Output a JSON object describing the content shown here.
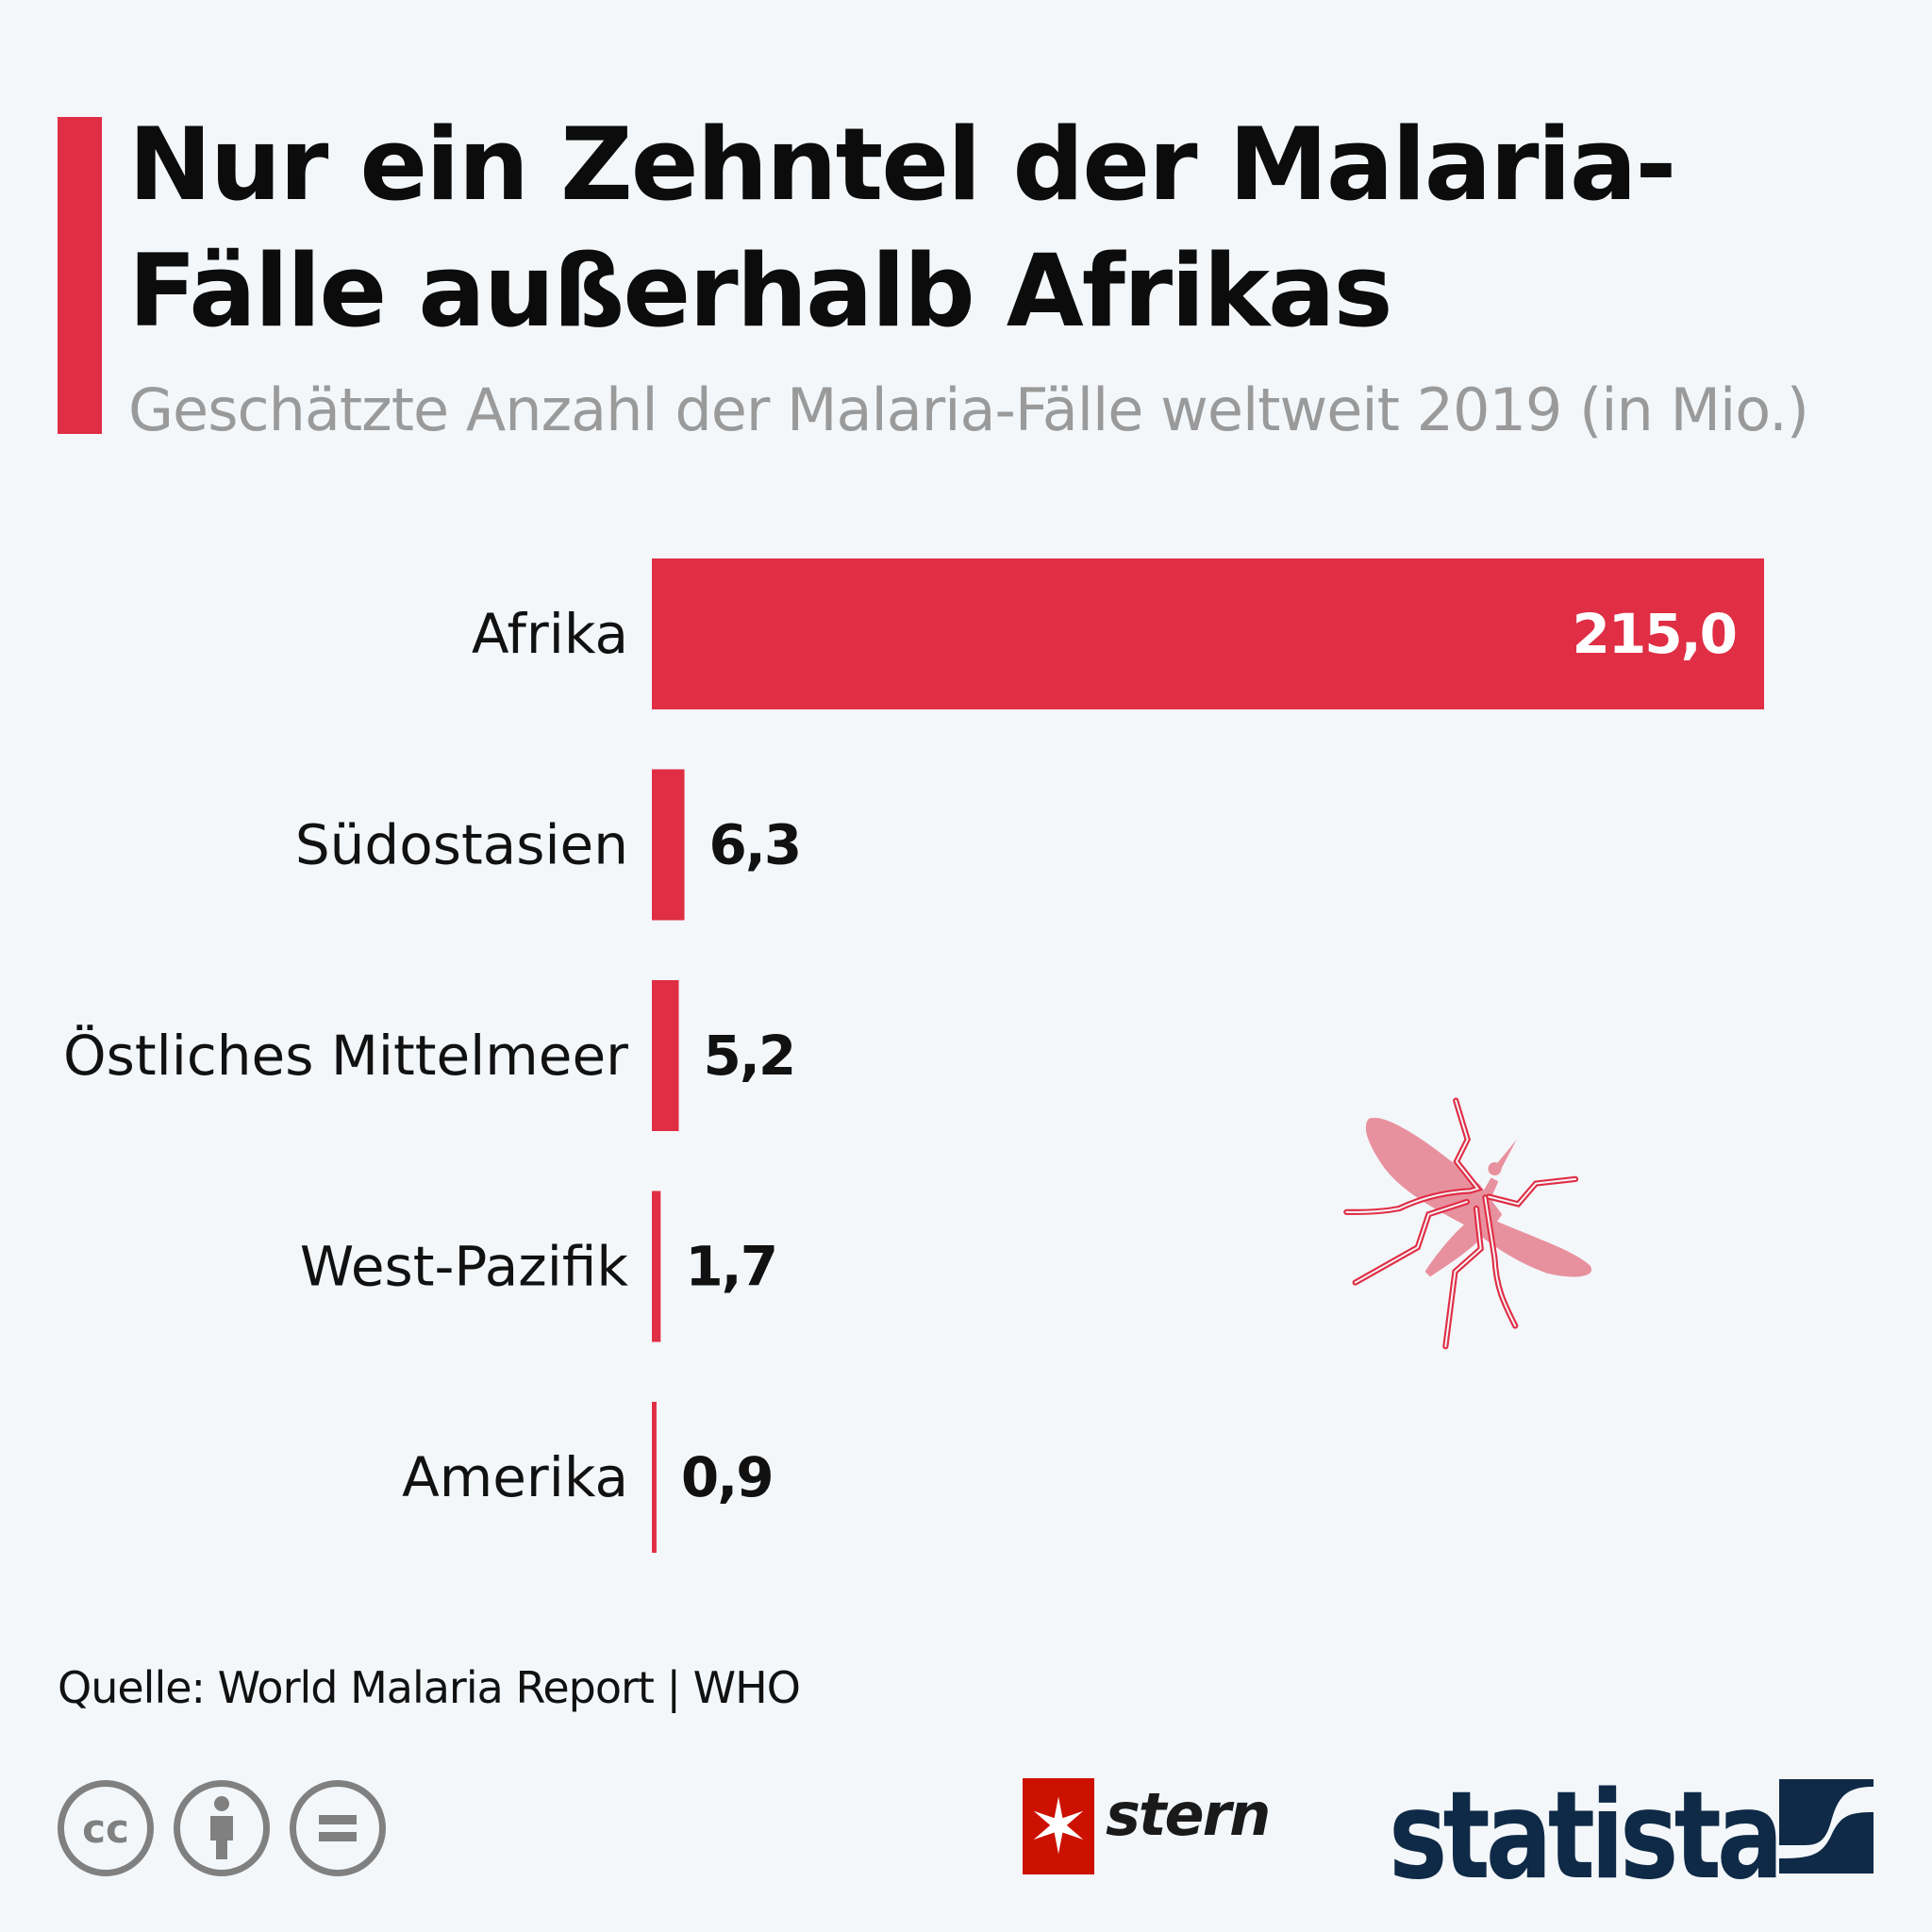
{
  "header": {
    "title": "Nur ein Zehntel der Malaria-Fälle außerhalb Afrikas",
    "subtitle": "Geschätzte Anzahl der Malaria-Fälle weltweit 2019 (in Mio.)"
  },
  "chart_data": {
    "type": "bar",
    "orientation": "horizontal",
    "title": "Nur ein Zehntel der Malaria-Fälle außerhalb Afrikas",
    "subtitle": "Geschätzte Anzahl der Malaria-Fälle weltweit 2019 (in Mio.)",
    "categories": [
      "Afrika",
      "Südostasien",
      "Östliches Mittelmeer",
      "West-Pazifik",
      "Amerika"
    ],
    "values": [
      215.0,
      6.3,
      5.2,
      1.7,
      0.9
    ],
    "value_labels": [
      "215,0",
      "6,3",
      "5,2",
      "1,7",
      "0,9"
    ],
    "xlim": [
      0,
      215
    ],
    "grid": false,
    "bar_color": "#e02e45"
  },
  "footer": {
    "source": "Quelle: World Malaria Report | WHO",
    "license_icons": [
      "cc-icon",
      "by-icon",
      "nd-icon"
    ],
    "cc_text": "cc",
    "logos": {
      "stern": "stern",
      "statista": "statista"
    }
  },
  "colors": {
    "accent": "#e02e45",
    "background": "#f4f7fa",
    "statista": "#0e2a47"
  }
}
